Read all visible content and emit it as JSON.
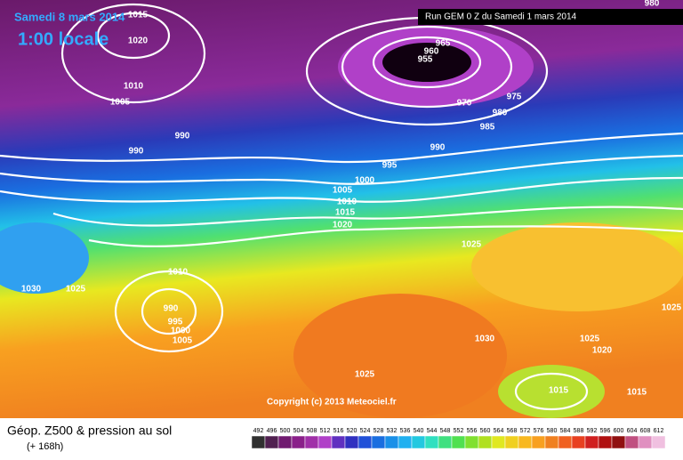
{
  "header": {
    "date": "Samedi 8 mars 2014",
    "time": "1:00 locale",
    "run": "Run GEM 0 Z du Samedi 1 mars 2014"
  },
  "isobar_labels": [
    "1015",
    "1020",
    "1010",
    "1005",
    "990",
    "990",
    "965",
    "960",
    "955",
    "970",
    "975",
    "980",
    "985",
    "990",
    "995",
    "1000",
    "1005",
    "1010",
    "1015",
    "1020",
    "1025",
    "980",
    "1010",
    "990",
    "995",
    "1000",
    "1005",
    "1030",
    "1025",
    "1030",
    "1025",
    "1025",
    "1020",
    "1015",
    "1015",
    "1025"
  ],
  "copyright": "Copyright (c) 2013 Meteociel.fr",
  "footer": {
    "title": "Géop. Z500 & pression au sol",
    "lead": "(+ 168h)"
  },
  "colorbar_ticks": [
    492,
    496,
    500,
    504,
    508,
    512,
    516,
    520,
    524,
    528,
    532,
    536,
    540,
    544,
    548,
    552,
    556,
    560,
    564,
    568,
    572,
    576,
    580,
    584,
    588,
    592,
    596,
    600,
    604,
    608,
    612
  ]
}
